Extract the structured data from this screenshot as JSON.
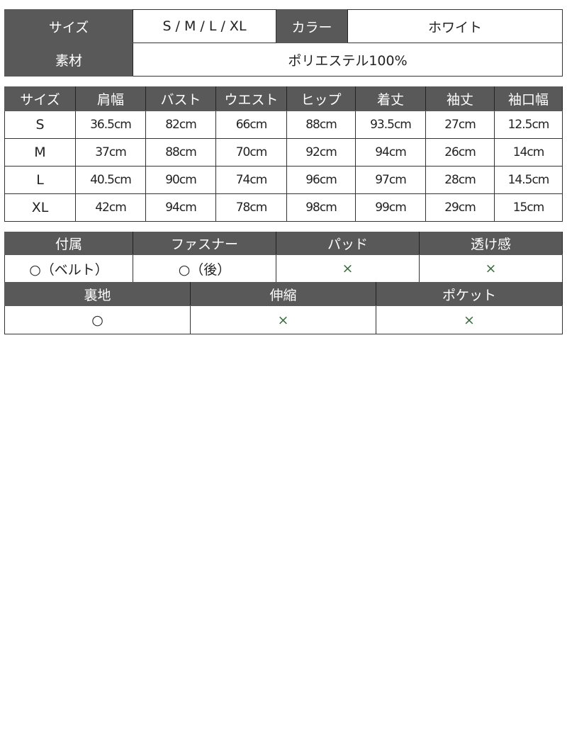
{
  "basic": {
    "size_label": "サイズ",
    "size_value": "S / M / L / XL",
    "color_label": "カラー",
    "color_value": "ホワイト",
    "material_label": "素材",
    "material_value": "ポリエステル100%"
  },
  "sizes": {
    "headers": [
      "サイズ",
      "肩幅",
      "バスト",
      "ウエスト",
      "ヒップ",
      "着丈",
      "袖丈",
      "袖口幅"
    ],
    "rows": [
      [
        "S",
        "36.5cm",
        "82cm",
        "66cm",
        "88cm",
        "93.5cm",
        "27cm",
        "12.5cm"
      ],
      [
        "M",
        "37cm",
        "88cm",
        "70cm",
        "92cm",
        "94cm",
        "26cm",
        "14cm"
      ],
      [
        "L",
        "40.5cm",
        "90cm",
        "74cm",
        "96cm",
        "97cm",
        "28cm",
        "14.5cm"
      ],
      [
        "XL",
        "42cm",
        "94cm",
        "78cm",
        "98cm",
        "99cm",
        "29cm",
        "15cm"
      ]
    ]
  },
  "features1": {
    "headers": [
      "付属",
      "ファスナー",
      "パッド",
      "透け感"
    ],
    "values": [
      "○（ベルト）",
      "○（後）",
      "×",
      "×"
    ]
  },
  "features2": {
    "headers": [
      "裏地",
      "伸縮",
      "ポケット"
    ],
    "values": [
      "○",
      "×",
      "×"
    ]
  },
  "colors": {
    "header_bg": "#595959",
    "cross": "#3a6b3a"
  }
}
